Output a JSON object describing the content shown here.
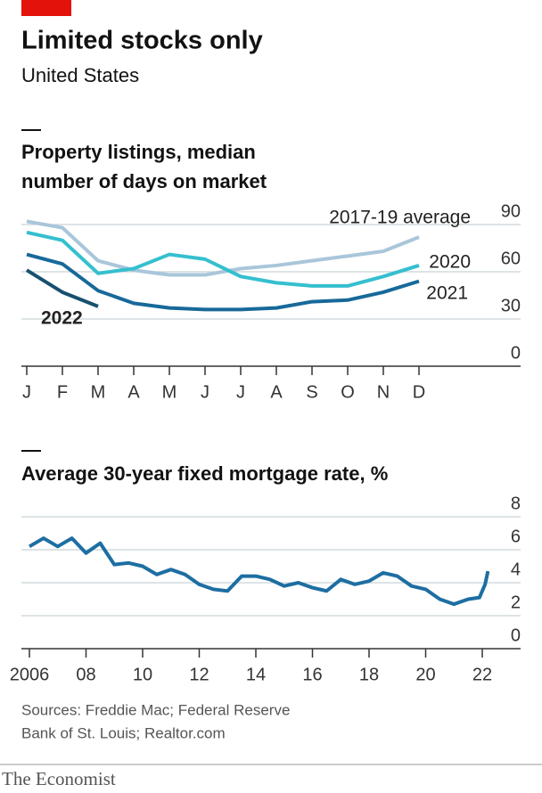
{
  "title": "Limited stocks only",
  "subtitle": "United States",
  "source": [
    "Sources: Freddie Mac; Federal Reserve",
    "Bank of St. Louis; Realtor.com"
  ],
  "brand": "The Economist",
  "chart_data": [
    {
      "type": "line",
      "title": [
        "Property listings, median",
        "number of days on market"
      ],
      "categories": [
        "J",
        "F",
        "M",
        "A",
        "M",
        "J",
        "J",
        "A",
        "S",
        "O",
        "N",
        "D"
      ],
      "series": [
        {
          "name": "2017-19 average",
          "color": "#a9c6da",
          "values": [
            92,
            88,
            67,
            61,
            58,
            58,
            62,
            64,
            67,
            70,
            73,
            82
          ]
        },
        {
          "name": "2020",
          "color": "#35bfcf",
          "values": [
            85,
            80,
            59,
            62,
            71,
            68,
            57,
            53,
            51,
            51,
            57,
            64
          ]
        },
        {
          "name": "2021",
          "color": "#17699a",
          "values": [
            71,
            65,
            48,
            40,
            37,
            36,
            36,
            37,
            41,
            42,
            47,
            54
          ]
        },
        {
          "name": "2022",
          "color": "#17506f",
          "values": [
            61,
            47,
            38,
            null,
            null,
            null,
            null,
            null,
            null,
            null,
            null,
            null
          ]
        }
      ],
      "ylim": [
        0,
        90
      ],
      "yticks": [
        0,
        30,
        60,
        90
      ],
      "grid": true
    },
    {
      "type": "line",
      "title": "Average 30-year fixed mortgage rate, %",
      "x": [
        2006,
        2006.5,
        2007,
        2007.5,
        2008,
        2008.5,
        2009,
        2009.5,
        2010,
        2010.5,
        2011,
        2011.5,
        2012,
        2012.5,
        2013,
        2013.5,
        2014,
        2014.5,
        2015,
        2015.5,
        2016,
        2016.5,
        2017,
        2017.5,
        2018,
        2018.5,
        2019,
        2019.5,
        2020,
        2020.5,
        2021,
        2021.5,
        2021.9,
        2022.1,
        2022.2
      ],
      "series": [
        {
          "name": "Mortgage rate",
          "color": "#1d6ea2",
          "values": [
            6.2,
            6.7,
            6.2,
            6.7,
            5.8,
            6.4,
            5.1,
            5.2,
            5.0,
            4.5,
            4.8,
            4.5,
            3.9,
            3.6,
            3.5,
            4.4,
            4.4,
            4.2,
            3.8,
            4.0,
            3.7,
            3.5,
            4.2,
            3.9,
            4.1,
            4.6,
            4.4,
            3.8,
            3.6,
            3.0,
            2.7,
            3.0,
            3.1,
            3.9,
            4.7
          ]
        }
      ],
      "xlim": [
        2006,
        2022
      ],
      "xticks": [
        {
          "value": 2006,
          "label": "2006"
        },
        {
          "value": 2008,
          "label": "08"
        },
        {
          "value": 2010,
          "label": "10"
        },
        {
          "value": 2012,
          "label": "12"
        },
        {
          "value": 2014,
          "label": "14"
        },
        {
          "value": 2016,
          "label": "16"
        },
        {
          "value": 2018,
          "label": "18"
        },
        {
          "value": 2020,
          "label": "20"
        },
        {
          "value": 2022,
          "label": "22"
        }
      ],
      "ylim": [
        0,
        8
      ],
      "yticks": [
        0,
        2,
        4,
        6,
        8
      ],
      "grid": true
    }
  ]
}
